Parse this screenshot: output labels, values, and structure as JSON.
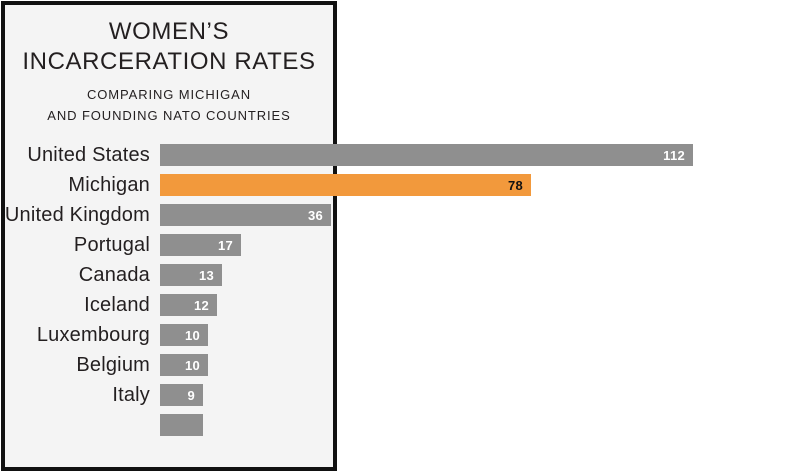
{
  "chart_data": {
    "type": "bar",
    "orientation": "horizontal",
    "title": "WOMEN'S INCARCERATION RATES",
    "title_lines": [
      "WOMEN’S",
      "INCARCERATION RATES"
    ],
    "subtitle_lines": [
      "COMPARING MICHIGAN",
      "AND FOUNDING NATO COUNTRIES"
    ],
    "categories": [
      "United States",
      "Michigan",
      "United Kingdom",
      "Portugal",
      "Canada",
      "Iceland",
      "Luxembourg",
      "Belgium",
      "Italy"
    ],
    "values": [
      112,
      78,
      36,
      17,
      13,
      12,
      10,
      10,
      9
    ],
    "highlight_category": "Michigan",
    "highlight_index": 1,
    "cutoff_bar": {
      "approx_value": 9,
      "label_visible": false
    },
    "xlim": [
      0,
      134
    ],
    "grid": false,
    "legend": "none",
    "value_labels": "inside-end",
    "colors": {
      "bar_gray": "#8f8f8f",
      "bar_highlight": "#f2993c",
      "panel_background": "#f4f4f4",
      "panel_border": "#111111",
      "page_background": "#ffffff",
      "value_text_on_gray": "#ffffff",
      "value_text_on_highlight": "#111111",
      "text": "#231f20"
    }
  }
}
